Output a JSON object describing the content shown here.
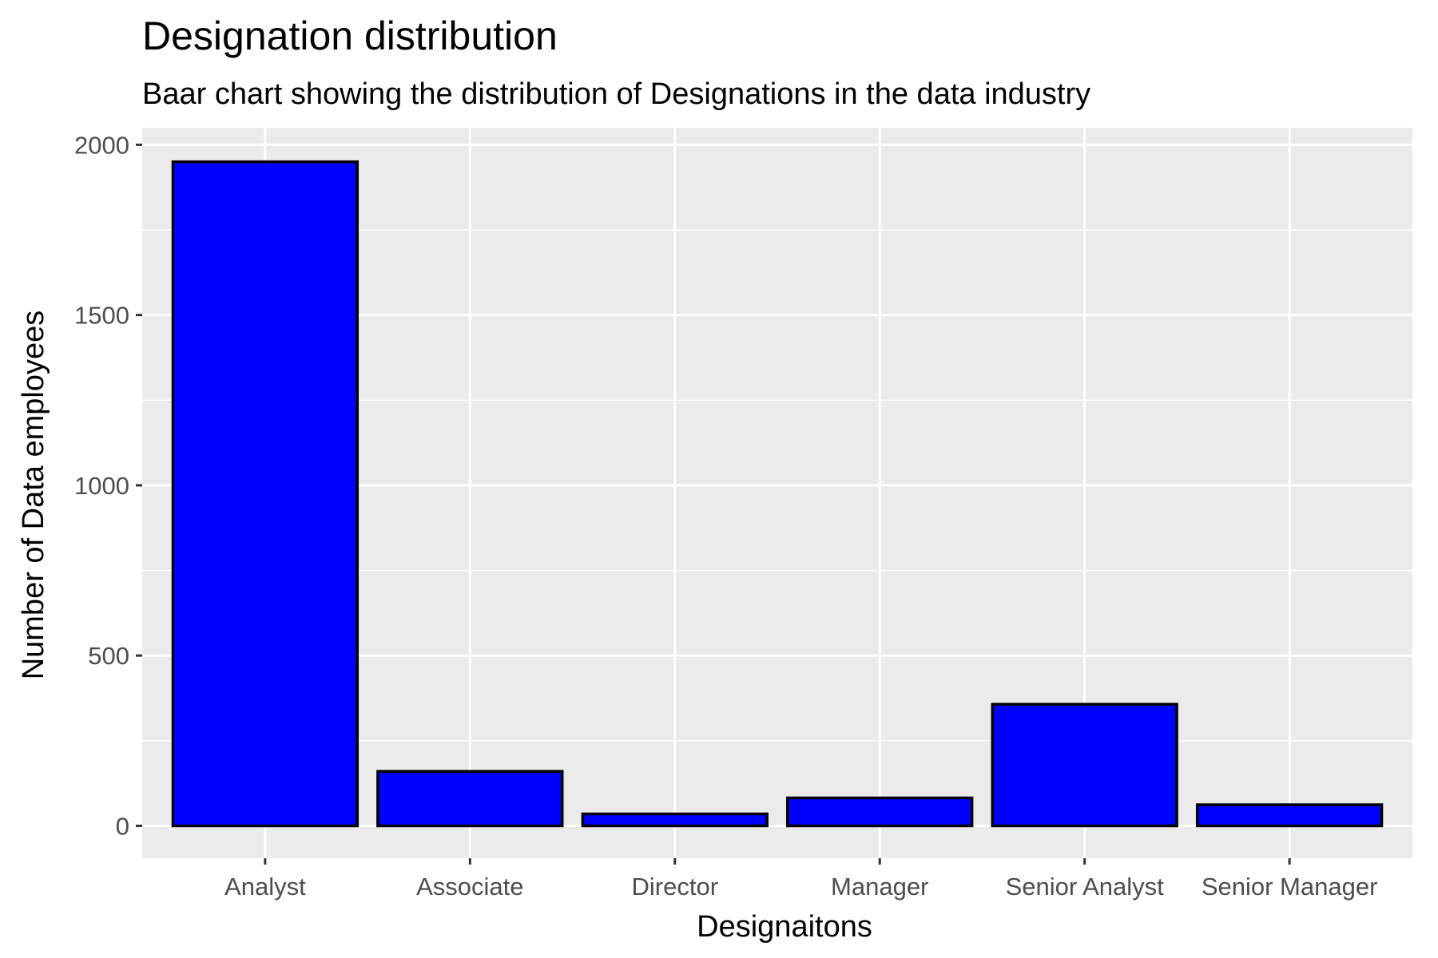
{
  "chart_data": {
    "type": "bar",
    "title": "Designation distribution",
    "subtitle": "Baar chart showing the distribution of Designations in the data industry",
    "xlabel": "Designaitons",
    "ylabel": "Number of Data employees",
    "categories": [
      "Analyst",
      "Associate",
      "Director",
      "Manager",
      "Senior Analyst",
      "Senior Manager"
    ],
    "values": [
      1950,
      160,
      35,
      82,
      357,
      62
    ],
    "ylim": [
      -95,
      2050
    ],
    "yticks": [
      0,
      500,
      1000,
      1500,
      2000
    ],
    "grid": true,
    "legend": "none",
    "colors": {
      "bar_fill": "#0000ff",
      "bar_stroke": "#000000",
      "panel_background": "#ebebeb",
      "grid": "#ffffff"
    }
  }
}
